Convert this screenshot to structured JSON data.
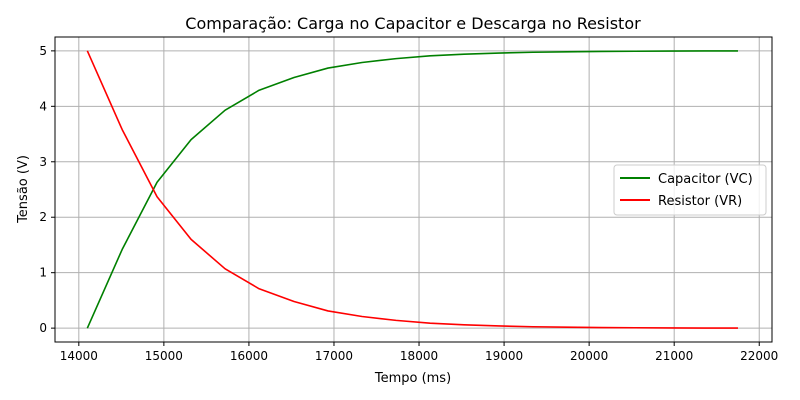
{
  "chart_data": {
    "type": "line",
    "title": "Comparação: Carga no Capacitor e Descarga no Resistor",
    "xlabel": "Tempo (ms)",
    "ylabel": "Tensão (V)",
    "xlim": [
      13720,
      22150
    ],
    "ylim": [
      -0.25,
      5.25
    ],
    "xticks": [
      14000,
      15000,
      16000,
      17000,
      18000,
      19000,
      20000,
      21000,
      22000
    ],
    "xtick_labels": [
      "14000",
      "15000",
      "16000",
      "17000",
      "18000",
      "19000",
      "20000",
      "21000",
      "22000"
    ],
    "yticks": [
      0,
      1,
      2,
      3,
      4,
      5
    ],
    "ytick_labels": [
      "0",
      "1",
      "2",
      "3",
      "4",
      "5"
    ],
    "grid": true,
    "legend_position": "center-right",
    "x": [
      14100,
      14510,
      14920,
      15320,
      15720,
      16120,
      16530,
      16930,
      17330,
      17730,
      18130,
      18530,
      18940,
      19340,
      19740,
      20140,
      20540,
      20950,
      21350,
      21750
    ],
    "series": [
      {
        "name": "Capacitor (VC)",
        "color": "#008000",
        "values": [
          0.0,
          1.42,
          2.63,
          3.4,
          3.93,
          4.29,
          4.52,
          4.69,
          4.79,
          4.86,
          4.91,
          4.94,
          4.96,
          4.975,
          4.983,
          4.989,
          4.993,
          4.996,
          4.998,
          4.999
        ]
      },
      {
        "name": "Resistor (VR)",
        "color": "#ff0000",
        "values": [
          5.0,
          3.58,
          2.37,
          1.6,
          1.07,
          0.71,
          0.48,
          0.31,
          0.21,
          0.14,
          0.09,
          0.06,
          0.04,
          0.025,
          0.017,
          0.011,
          0.007,
          0.004,
          0.002,
          0.001
        ]
      }
    ]
  }
}
